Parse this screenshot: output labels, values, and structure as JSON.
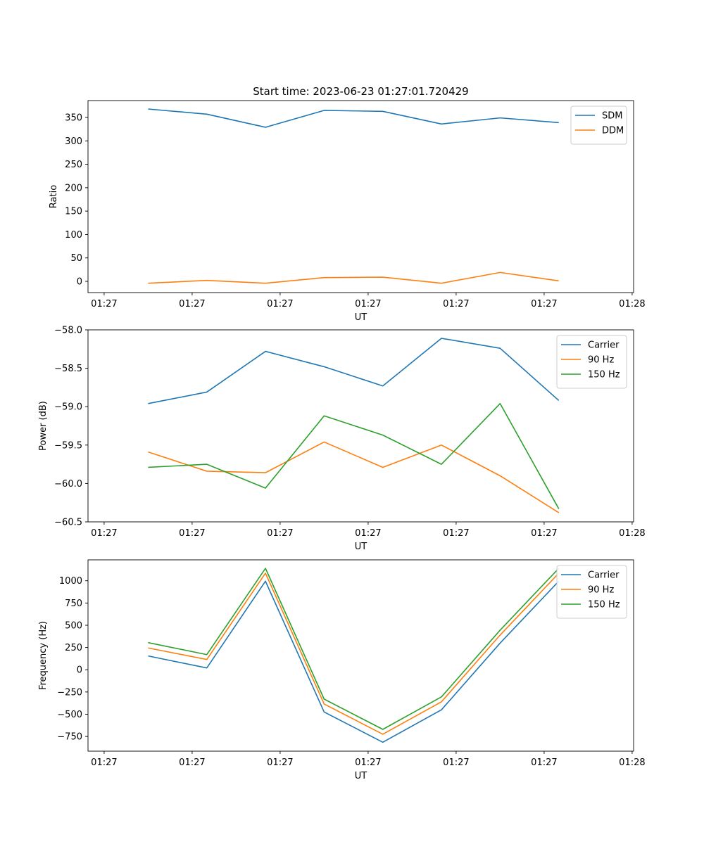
{
  "chart_data": [
    {
      "type": "line",
      "title": "Start time: 2023-06-23 01:27:01.720429",
      "xlabel": "UT",
      "ylabel": "Ratio",
      "x_tick_labels": [
        "01:27",
        "01:27",
        "01:27",
        "01:27",
        "01:27",
        "01:27",
        "01:28"
      ],
      "x_ticks": [
        0,
        6,
        12,
        18,
        24,
        30,
        36
      ],
      "xlim": [
        -1.1,
        36.1
      ],
      "ylim": [
        -24,
        386
      ],
      "y_ticks": [
        0,
        50,
        100,
        150,
        200,
        250,
        300,
        350
      ],
      "y_tick_labels": [
        "0",
        "50",
        "100",
        "150",
        "200",
        "250",
        "300",
        "350"
      ],
      "x": [
        3,
        7,
        11,
        15,
        19,
        23,
        27,
        31
      ],
      "legend": "top-right",
      "grid": false,
      "series": [
        {
          "name": "SDM",
          "color": "#1f77b4",
          "values": [
            368,
            357,
            329,
            365,
            363,
            336,
            349,
            339
          ]
        },
        {
          "name": "DDM",
          "color": "#ff7f0e",
          "values": [
            -4,
            2,
            -4,
            8,
            9,
            -4,
            19,
            1
          ]
        }
      ]
    },
    {
      "type": "line",
      "title": "",
      "xlabel": "UT",
      "ylabel": "Power (dB)",
      "x_tick_labels": [
        "01:27",
        "01:27",
        "01:27",
        "01:27",
        "01:27",
        "01:27",
        "01:28"
      ],
      "x_ticks": [
        0,
        6,
        12,
        18,
        24,
        30,
        36
      ],
      "xlim": [
        -1.1,
        36.1
      ],
      "ylim": [
        -60.5,
        -58.0
      ],
      "y_ticks": [
        -60.5,
        -60.0,
        -59.5,
        -59.0,
        -58.5,
        -58.0
      ],
      "y_tick_labels": [
        "−60.5",
        "−60.0",
        "−59.5",
        "−59.0",
        "−58.5",
        "−58.0"
      ],
      "x": [
        3,
        7,
        11,
        15,
        19,
        23,
        27,
        31
      ],
      "legend": "top-right",
      "grid": false,
      "series": [
        {
          "name": "Carrier",
          "color": "#1f77b4",
          "values": [
            -58.96,
            -58.81,
            -58.28,
            -58.48,
            -58.73,
            -58.11,
            -58.24,
            -58.92
          ]
        },
        {
          "name": "90 Hz",
          "color": "#ff7f0e",
          "values": [
            -59.59,
            -59.84,
            -59.86,
            -59.46,
            -59.79,
            -59.5,
            -59.9,
            -60.38
          ]
        },
        {
          "name": "150 Hz",
          "color": "#2ca02c",
          "values": [
            -59.79,
            -59.75,
            -60.06,
            -59.12,
            -59.37,
            -59.75,
            -58.96,
            -60.33
          ]
        }
      ]
    },
    {
      "type": "line",
      "title": "",
      "xlabel": "UT",
      "ylabel": "Frequency (Hz)",
      "x_tick_labels": [
        "01:27",
        "01:27",
        "01:27",
        "01:27",
        "01:27",
        "01:27",
        "01:28"
      ],
      "x_ticks": [
        0,
        6,
        12,
        18,
        24,
        30,
        36
      ],
      "xlim": [
        -1.1,
        36.1
      ],
      "ylim": [
        -915,
        1235
      ],
      "y_ticks": [
        -750,
        -500,
        -250,
        0,
        250,
        500,
        750,
        1000
      ],
      "y_tick_labels": [
        "−750",
        "−500",
        "−250",
        "0",
        "250",
        "500",
        "750",
        "1000"
      ],
      "x": [
        3,
        7,
        11,
        15,
        19,
        23,
        27,
        31
      ],
      "legend": "top-right",
      "grid": false,
      "series": [
        {
          "name": "Carrier",
          "color": "#1f77b4",
          "values": [
            155,
            20,
            995,
            -475,
            -815,
            -450,
            300,
            995
          ]
        },
        {
          "name": "90 Hz",
          "color": "#ff7f0e",
          "values": [
            245,
            115,
            1085,
            -385,
            -725,
            -360,
            390,
            1085
          ]
        },
        {
          "name": "150 Hz",
          "color": "#2ca02c",
          "values": [
            305,
            170,
            1140,
            -330,
            -670,
            -305,
            445,
            1140
          ]
        }
      ]
    }
  ]
}
